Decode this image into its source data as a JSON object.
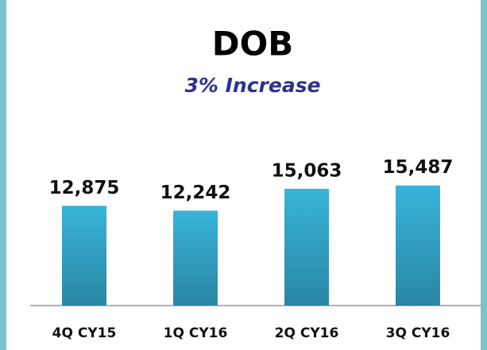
{
  "chart_data": {
    "type": "bar",
    "title": "DOB",
    "subtitle": "3% Increase",
    "categories": [
      "4Q CY15",
      "1Q CY16",
      "2Q CY16",
      "3Q CY16"
    ],
    "values": [
      12875,
      12242,
      15063,
      15487
    ],
    "value_labels": [
      "12,875",
      "12,242",
      "15,063",
      "15,487"
    ],
    "color": "#38b4da",
    "ylim": [
      0,
      30000
    ]
  }
}
